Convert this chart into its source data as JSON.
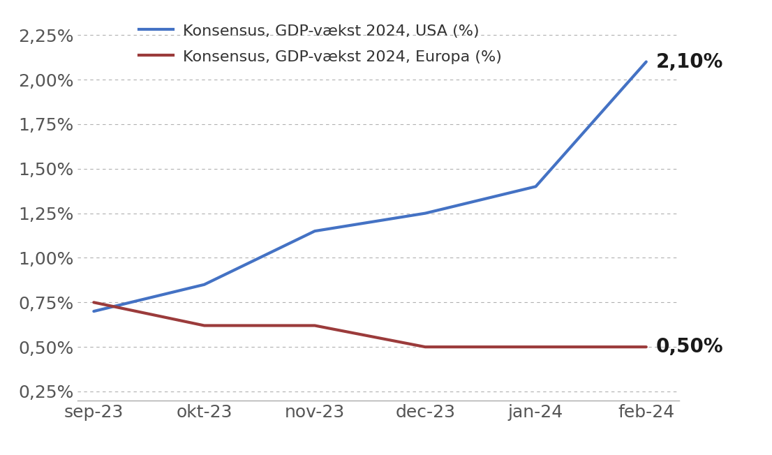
{
  "x_labels": [
    "sep-23",
    "okt-23",
    "nov-23",
    "dec-23",
    "jan-24",
    "feb-24"
  ],
  "usa_values": [
    0.007,
    0.0085,
    0.0115,
    0.0125,
    0.014,
    0.021
  ],
  "europe_values": [
    0.0075,
    0.0062,
    0.0062,
    0.005,
    0.005,
    0.005
  ],
  "usa_color": "#4472c4",
  "europe_color": "#9b3b3b",
  "usa_label": "Konsensus, GDP-vækst 2024, USA (%)",
  "europe_label": "Konsensus, GDP-vækst 2024, Europa (%)",
  "usa_end_label": "2,10%",
  "europe_end_label": "0,50%",
  "ylim": [
    0.002,
    0.0237
  ],
  "yticks": [
    0.0025,
    0.005,
    0.0075,
    0.01,
    0.0125,
    0.015,
    0.0175,
    0.02,
    0.0225
  ],
  "ytick_labels": [
    "0,25%",
    "0,50%",
    "0,75%",
    "1,00%",
    "1,25%",
    "1,50%",
    "1,75%",
    "2,00%",
    "2,25%"
  ],
  "background_color": "#ffffff",
  "grid_color": "#b0b0b0",
  "line_width": 3.0,
  "annotation_fontsize": 20,
  "legend_fontsize": 16,
  "tick_fontsize": 18
}
